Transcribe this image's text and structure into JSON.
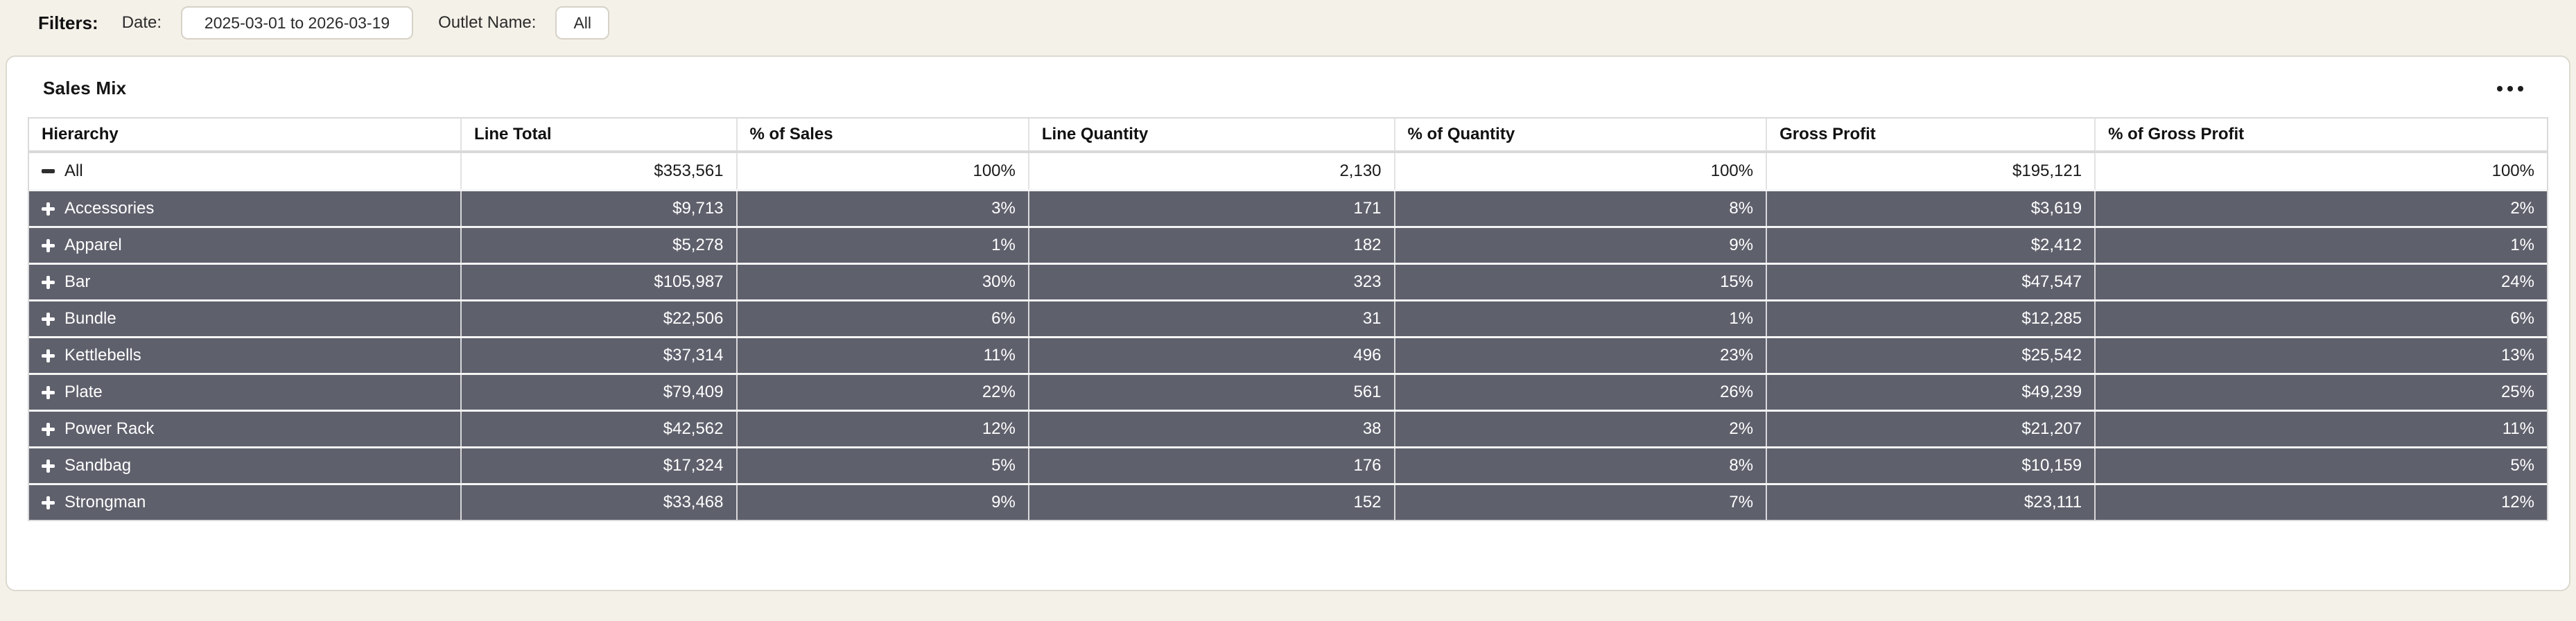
{
  "filters": {
    "label": "Filters:",
    "date_label": "Date:",
    "date_value": "2025-03-01 to 2026-03-19",
    "outlet_label": "Outlet Name:",
    "outlet_value": "All"
  },
  "card": {
    "title": "Sales Mix",
    "menu_icon": "ellipsis-horizontal-icon"
  },
  "colors": {
    "page_background": "#f4f1e8",
    "card_background": "#ffffff",
    "child_row_background": "#5e606c",
    "child_row_text": "#ffffff",
    "grid_line": "#e2e2e2"
  },
  "table": {
    "columns": [
      "Hierarchy",
      "Line Total",
      "% of Sales",
      "Line Quantity",
      "% of Quantity",
      "Gross Profit",
      "% of Gross Profit"
    ],
    "root_row": {
      "name": "All",
      "expanded": true,
      "values": [
        "$353,561",
        "100%",
        "2,130",
        "100%",
        "$195,121",
        "100%"
      ]
    },
    "rows": [
      {
        "name": "Accessories",
        "expanded": false,
        "values": [
          "$9,713",
          "3%",
          "171",
          "8%",
          "$3,619",
          "2%"
        ]
      },
      {
        "name": "Apparel",
        "expanded": false,
        "values": [
          "$5,278",
          "1%",
          "182",
          "9%",
          "$2,412",
          "1%"
        ]
      },
      {
        "name": "Bar",
        "expanded": false,
        "values": [
          "$105,987",
          "30%",
          "323",
          "15%",
          "$47,547",
          "24%"
        ]
      },
      {
        "name": "Bundle",
        "expanded": false,
        "values": [
          "$22,506",
          "6%",
          "31",
          "1%",
          "$12,285",
          "6%"
        ]
      },
      {
        "name": "Kettlebells",
        "expanded": false,
        "values": [
          "$37,314",
          "11%",
          "496",
          "23%",
          "$25,542",
          "13%"
        ]
      },
      {
        "name": "Plate",
        "expanded": false,
        "values": [
          "$79,409",
          "22%",
          "561",
          "26%",
          "$49,239",
          "25%"
        ]
      },
      {
        "name": "Power Rack",
        "expanded": false,
        "values": [
          "$42,562",
          "12%",
          "38",
          "2%",
          "$21,207",
          "11%"
        ]
      },
      {
        "name": "Sandbag",
        "expanded": false,
        "values": [
          "$17,324",
          "5%",
          "176",
          "8%",
          "$10,159",
          "5%"
        ]
      },
      {
        "name": "Strongman",
        "expanded": false,
        "values": [
          "$33,468",
          "9%",
          "152",
          "7%",
          "$23,111",
          "12%"
        ]
      }
    ]
  }
}
